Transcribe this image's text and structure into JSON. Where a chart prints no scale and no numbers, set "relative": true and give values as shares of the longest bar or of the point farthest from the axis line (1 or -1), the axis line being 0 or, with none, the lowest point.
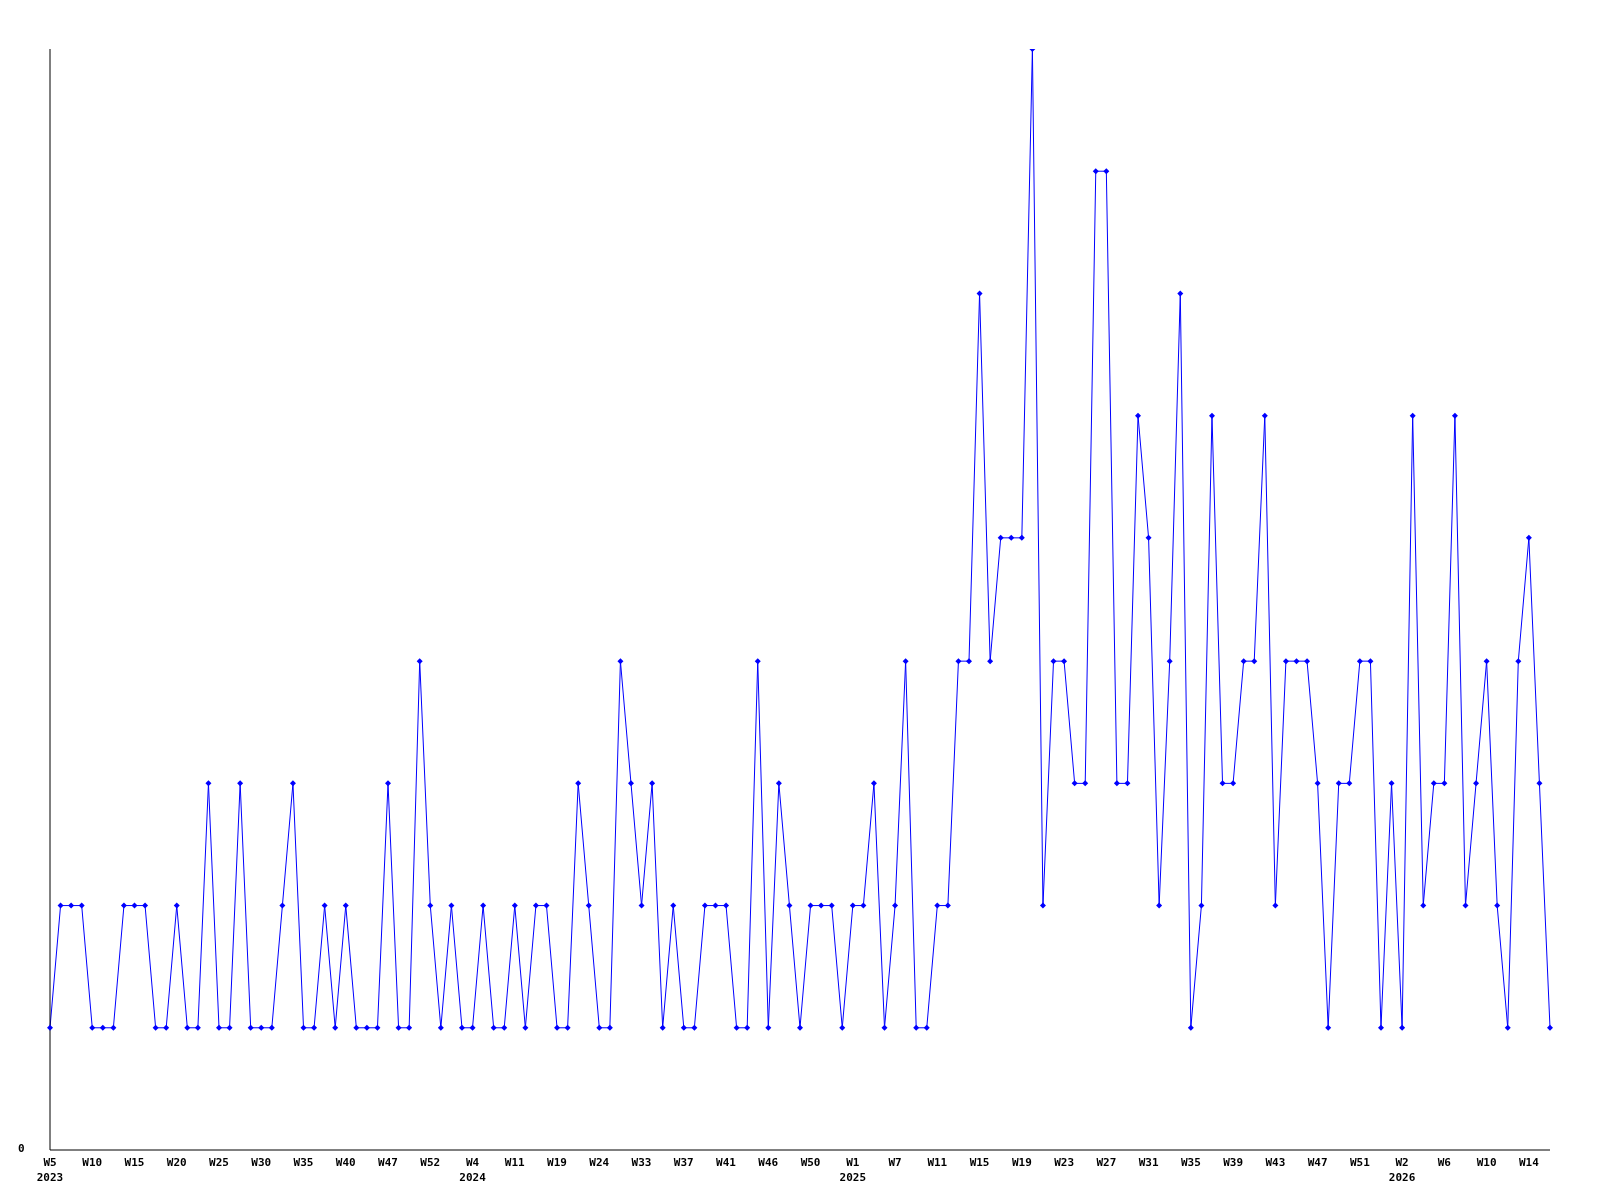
{
  "chart_data": {
    "type": "line",
    "relative": true,
    "categories": [
      "W5\n2023",
      null,
      null,
      null,
      "W10",
      null,
      null,
      null,
      "W15",
      null,
      null,
      null,
      "W20",
      null,
      null,
      null,
      "W25",
      null,
      null,
      null,
      "W30",
      null,
      null,
      null,
      "W35",
      null,
      null,
      null,
      "W40",
      null,
      null,
      null,
      "W47",
      null,
      null,
      null,
      "W52",
      null,
      null,
      null,
      "W4\n2024",
      null,
      null,
      null,
      "W11",
      null,
      null,
      null,
      "W19",
      null,
      null,
      null,
      "W24",
      null,
      null,
      null,
      "W33",
      null,
      null,
      null,
      "W37",
      null,
      null,
      null,
      "W41",
      null,
      null,
      null,
      "W46",
      null,
      null,
      null,
      "W50",
      null,
      null,
      null,
      "W1\n2025",
      null,
      null,
      null,
      "W7",
      null,
      null,
      null,
      "W11",
      null,
      null,
      null,
      "W15",
      null,
      null,
      null,
      "W19",
      null,
      null,
      null,
      "W23",
      null,
      null,
      null,
      "W27",
      null,
      null,
      null,
      "W31",
      null,
      null,
      null,
      "W35",
      null,
      null,
      null,
      "W39",
      null,
      null,
      null,
      "W43",
      null,
      null,
      null,
      "W47",
      null,
      null,
      null,
      "W51",
      null,
      null,
      null,
      "W2\n2026",
      null,
      null,
      null,
      "W6",
      null,
      null,
      null,
      "W10",
      null,
      null,
      null,
      "W14",
      null,
      null
    ],
    "series": [
      {
        "color": "#0000ff",
        "values": [
          0.111,
          0.222,
          0.222,
          0.222,
          0.111,
          0.111,
          0.111,
          0.222,
          0.222,
          0.222,
          0.111,
          0.111,
          0.222,
          0.111,
          0.111,
          0.333,
          0.111,
          0.111,
          0.333,
          0.111,
          0.111,
          0.111,
          0.222,
          0.333,
          0.111,
          0.111,
          0.222,
          0.111,
          0.222,
          0.111,
          0.111,
          0.111,
          0.333,
          0.111,
          0.111,
          0.444,
          0.222,
          0.111,
          0.222,
          0.111,
          0.111,
          0.222,
          0.111,
          0.111,
          0.222,
          0.111,
          0.222,
          0.222,
          0.111,
          0.111,
          0.333,
          0.222,
          0.111,
          0.111,
          0.444,
          0.333,
          0.222,
          0.333,
          0.111,
          0.222,
          0.111,
          0.111,
          0.222,
          0.222,
          0.222,
          0.111,
          0.111,
          0.444,
          0.111,
          0.333,
          0.222,
          0.111,
          0.222,
          0.222,
          0.222,
          0.111,
          0.222,
          0.222,
          0.333,
          0.111,
          0.222,
          0.444,
          0.111,
          0.111,
          0.222,
          0.222,
          0.444,
          0.444,
          0.778,
          0.444,
          0.556,
          0.556,
          0.556,
          1,
          0.222,
          0.444,
          0.444,
          0.333,
          0.333,
          0.889,
          0.889,
          0.333,
          0.333,
          0.667,
          0.556,
          0.222,
          0.444,
          0.778,
          0.111,
          0.222,
          0.667,
          0.333,
          0.333,
          0.444,
          0.444,
          0.667,
          0.222,
          0.444,
          0.444,
          0.444,
          0.333,
          0.111,
          0.333,
          0.333,
          0.444,
          0.444,
          0.111,
          0.333,
          0.111,
          0.667,
          0.222,
          0.333,
          0.333,
          0.667,
          0.222,
          0.333,
          0.444,
          0.222,
          0.111,
          0.444,
          0.556,
          0.333,
          0.111
        ]
      }
    ],
    "annotations": [
      "0"
    ],
    "marker": "diamond",
    "line_style": "solid",
    "grid": false,
    "legend": false
  }
}
